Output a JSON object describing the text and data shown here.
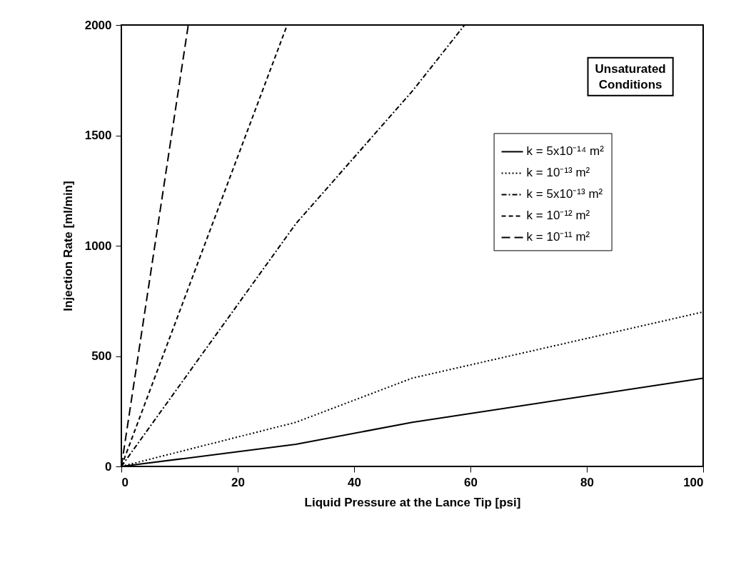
{
  "chart_data": {
    "type": "line",
    "xlabel": "Liquid Pressure at the Lance Tip [psi]",
    "ylabel": "Injection Rate [ml/min]",
    "xlim": [
      0,
      100
    ],
    "ylim": [
      0,
      2000
    ],
    "xticks": [
      0,
      20,
      40,
      60,
      80,
      100
    ],
    "yticks": [
      0,
      500,
      1000,
      1500,
      2000
    ],
    "grid": false,
    "legend": "right",
    "marker": "none",
    "annotations": [
      "Unsaturated Conditions"
    ],
    "series": [
      {
        "name": "k = 5x10⁻¹⁴ m²",
        "color": "#000000",
        "line_style": "solid",
        "x": [
          0,
          30,
          50,
          100
        ],
        "values": [
          0,
          100,
          200,
          400
        ]
      },
      {
        "name": "k = 10⁻¹³ m²",
        "color": "#000000",
        "line_style": "dotted",
        "x": [
          0,
          30,
          50,
          100
        ],
        "values": [
          0,
          200,
          400,
          700
        ]
      },
      {
        "name": "k = 5x10⁻¹³ m²",
        "color": "#000000",
        "line_style": "dashdot",
        "x": [
          0,
          30,
          50,
          59
        ],
        "values": [
          0,
          1100,
          1700,
          2000
        ]
      },
      {
        "name": "k = 10⁻¹² m²",
        "color": "#000000",
        "line_style": "dashed",
        "x": [
          0,
          28.5
        ],
        "values": [
          0,
          2000
        ]
      },
      {
        "name": "k = 10⁻¹¹ m²",
        "color": "#000000",
        "line_style": "longdash",
        "x": [
          0,
          11.5
        ],
        "values": [
          0,
          2000
        ]
      }
    ]
  }
}
